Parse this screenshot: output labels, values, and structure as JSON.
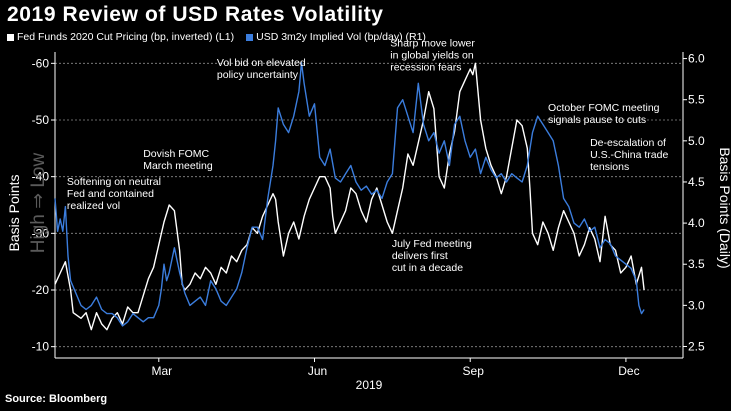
{
  "colors": {
    "background": "#000000",
    "fed_funds_line": "#ffffff",
    "implied_vol_line": "#3b7ddd",
    "grid": "#8a8a8a",
    "watermark": "#5a5a5a"
  },
  "source": "Source: Bloomberg",
  "chart_data": {
    "type": "line",
    "title": "2019 Review of USD Rates Volatility",
    "left_axis": {
      "label": "Basis Points",
      "secondary_label": "High ⇒ Low",
      "ylim": [
        -8,
        -62
      ],
      "inverted": true,
      "ticks": [
        -10,
        -20,
        -30,
        -40,
        -50,
        -60
      ],
      "tick_labels": [
        "-10",
        "-20",
        "-30",
        "-40",
        "-50",
        "-60"
      ]
    },
    "right_axis": {
      "label": "Basis Points (Daily)",
      "ylim": [
        2.36,
        6.08
      ],
      "ticks": [
        2.5,
        3.0,
        3.5,
        4.0,
        4.5,
        5.0,
        5.5,
        6.0
      ],
      "tick_labels": [
        "2.5",
        "3.0",
        "3.5",
        "4.0",
        "4.5",
        "5.0",
        "5.5",
        "6.0"
      ]
    },
    "x_axis": {
      "range_months": [
        0,
        12.1
      ],
      "ticks": [
        {
          "month": 2.0,
          "label": "Mar"
        },
        {
          "month": 5.0,
          "label": "Jun"
        },
        {
          "month": 8.0,
          "label": "Sep"
        },
        {
          "month": 11.0,
          "label": "Dec"
        }
      ],
      "year_label": "2019"
    },
    "grid": "dashed horizontal",
    "legend_position": "top-left",
    "series": [
      {
        "name": "Fed Funds 2020 Cut Pricing (bp, inverted) (L1)",
        "axis": "left",
        "points": [
          [
            0.0,
            -21
          ],
          [
            0.1,
            -23
          ],
          [
            0.2,
            -25
          ],
          [
            0.3,
            -20
          ],
          [
            0.35,
            -16
          ],
          [
            0.5,
            -15
          ],
          [
            0.6,
            -16
          ],
          [
            0.7,
            -13
          ],
          [
            0.8,
            -16
          ],
          [
            0.9,
            -14
          ],
          [
            1.0,
            -13
          ],
          [
            1.1,
            -15
          ],
          [
            1.2,
            -16
          ],
          [
            1.3,
            -14
          ],
          [
            1.4,
            -17
          ],
          [
            1.5,
            -16
          ],
          [
            1.6,
            -16
          ],
          [
            1.7,
            -19
          ],
          [
            1.8,
            -22
          ],
          [
            1.9,
            -24
          ],
          [
            2.0,
            -28
          ],
          [
            2.05,
            -30
          ],
          [
            2.1,
            -32
          ],
          [
            2.2,
            -35
          ],
          [
            2.3,
            -34
          ],
          [
            2.4,
            -27
          ],
          [
            2.45,
            -21
          ],
          [
            2.5,
            -20
          ],
          [
            2.6,
            -21
          ],
          [
            2.7,
            -23
          ],
          [
            2.8,
            -22
          ],
          [
            2.9,
            -24
          ],
          [
            3.0,
            -23
          ],
          [
            3.1,
            -21
          ],
          [
            3.2,
            -24
          ],
          [
            3.3,
            -23
          ],
          [
            3.4,
            -26
          ],
          [
            3.5,
            -25
          ],
          [
            3.6,
            -27
          ],
          [
            3.7,
            -28
          ],
          [
            3.8,
            -31
          ],
          [
            3.9,
            -30
          ],
          [
            4.0,
            -33
          ],
          [
            4.1,
            -35
          ],
          [
            4.2,
            -37
          ],
          [
            4.25,
            -36
          ],
          [
            4.3,
            -32
          ],
          [
            4.4,
            -26
          ],
          [
            4.5,
            -30
          ],
          [
            4.6,
            -32
          ],
          [
            4.7,
            -29
          ],
          [
            4.8,
            -33
          ],
          [
            4.9,
            -36
          ],
          [
            5.0,
            -38
          ],
          [
            5.1,
            -40
          ],
          [
            5.2,
            -40
          ],
          [
            5.3,
            -38
          ],
          [
            5.35,
            -33
          ],
          [
            5.4,
            -30
          ],
          [
            5.5,
            -32
          ],
          [
            5.6,
            -34
          ],
          [
            5.7,
            -38
          ],
          [
            5.8,
            -37
          ],
          [
            5.9,
            -34
          ],
          [
            6.0,
            -32
          ],
          [
            6.1,
            -36
          ],
          [
            6.2,
            -38
          ],
          [
            6.3,
            -35
          ],
          [
            6.4,
            -32
          ],
          [
            6.5,
            -30
          ],
          [
            6.6,
            -34
          ],
          [
            6.7,
            -38
          ],
          [
            6.8,
            -44
          ],
          [
            6.9,
            -42
          ],
          [
            7.0,
            -46
          ],
          [
            7.1,
            -50
          ],
          [
            7.2,
            -55
          ],
          [
            7.3,
            -52
          ],
          [
            7.4,
            -40
          ],
          [
            7.5,
            -38
          ],
          [
            7.6,
            -44
          ],
          [
            7.7,
            -48
          ],
          [
            7.8,
            -55
          ],
          [
            7.9,
            -57
          ],
          [
            8.0,
            -59
          ],
          [
            8.05,
            -58
          ],
          [
            8.1,
            -60
          ],
          [
            8.2,
            -50
          ],
          [
            8.3,
            -45
          ],
          [
            8.4,
            -42
          ],
          [
            8.5,
            -40
          ],
          [
            8.6,
            -37
          ],
          [
            8.7,
            -40
          ],
          [
            8.8,
            -45
          ],
          [
            8.9,
            -50
          ],
          [
            9.0,
            -49
          ],
          [
            9.1,
            -45
          ],
          [
            9.15,
            -38
          ],
          [
            9.2,
            -30
          ],
          [
            9.3,
            -28
          ],
          [
            9.4,
            -32
          ],
          [
            9.5,
            -30
          ],
          [
            9.6,
            -27
          ],
          [
            9.7,
            -31
          ],
          [
            9.8,
            -34
          ],
          [
            9.9,
            -32
          ],
          [
            10.0,
            -30
          ],
          [
            10.1,
            -26
          ],
          [
            10.2,
            -28
          ],
          [
            10.3,
            -31
          ],
          [
            10.4,
            -29
          ],
          [
            10.5,
            -25
          ],
          [
            10.6,
            -33
          ],
          [
            10.7,
            -28
          ],
          [
            10.8,
            -27
          ],
          [
            10.9,
            -23
          ],
          [
            11.0,
            -24
          ],
          [
            11.1,
            -26
          ],
          [
            11.2,
            -21
          ],
          [
            11.3,
            -24
          ],
          [
            11.35,
            -20
          ]
        ]
      },
      {
        "name": "USD 3m2y Implied Vol (bp/day) (R1)",
        "axis": "right",
        "points": [
          [
            0.0,
            4.3
          ],
          [
            0.05,
            3.9
          ],
          [
            0.1,
            4.05
          ],
          [
            0.15,
            3.9
          ],
          [
            0.2,
            4.2
          ],
          [
            0.25,
            3.6
          ],
          [
            0.3,
            3.3
          ],
          [
            0.4,
            3.15
          ],
          [
            0.5,
            3.0
          ],
          [
            0.6,
            2.95
          ],
          [
            0.7,
            3.0
          ],
          [
            0.8,
            3.1
          ],
          [
            0.9,
            2.95
          ],
          [
            1.0,
            2.9
          ],
          [
            1.1,
            2.9
          ],
          [
            1.2,
            2.85
          ],
          [
            1.3,
            2.75
          ],
          [
            1.4,
            2.8
          ],
          [
            1.5,
            2.9
          ],
          [
            1.6,
            2.85
          ],
          [
            1.7,
            2.8
          ],
          [
            1.8,
            2.85
          ],
          [
            1.9,
            2.85
          ],
          [
            2.0,
            3.0
          ],
          [
            2.05,
            3.2
          ],
          [
            2.1,
            3.5
          ],
          [
            2.15,
            3.3
          ],
          [
            2.2,
            3.4
          ],
          [
            2.3,
            3.7
          ],
          [
            2.4,
            3.4
          ],
          [
            2.5,
            3.15
          ],
          [
            2.6,
            3.0
          ],
          [
            2.7,
            3.05
          ],
          [
            2.8,
            3.1
          ],
          [
            2.9,
            3.0
          ],
          [
            3.0,
            3.3
          ],
          [
            3.1,
            3.2
          ],
          [
            3.2,
            3.05
          ],
          [
            3.3,
            3.0
          ],
          [
            3.4,
            3.1
          ],
          [
            3.5,
            3.2
          ],
          [
            3.6,
            3.4
          ],
          [
            3.7,
            3.7
          ],
          [
            3.8,
            3.95
          ],
          [
            3.9,
            3.95
          ],
          [
            4.0,
            3.8
          ],
          [
            4.1,
            4.3
          ],
          [
            4.2,
            4.7
          ],
          [
            4.25,
            5.0
          ],
          [
            4.3,
            5.4
          ],
          [
            4.35,
            5.3
          ],
          [
            4.4,
            5.2
          ],
          [
            4.5,
            5.1
          ],
          [
            4.6,
            5.3
          ],
          [
            4.7,
            5.6
          ],
          [
            4.75,
            5.95
          ],
          [
            4.8,
            5.7
          ],
          [
            4.9,
            5.3
          ],
          [
            5.0,
            5.45
          ],
          [
            5.1,
            4.8
          ],
          [
            5.2,
            4.7
          ],
          [
            5.3,
            4.9
          ],
          [
            5.4,
            4.55
          ],
          [
            5.5,
            4.5
          ],
          [
            5.6,
            4.6
          ],
          [
            5.7,
            4.7
          ],
          [
            5.8,
            4.5
          ],
          [
            5.9,
            4.4
          ],
          [
            6.0,
            4.45
          ],
          [
            6.1,
            4.35
          ],
          [
            6.2,
            4.4
          ],
          [
            6.3,
            4.3
          ],
          [
            6.4,
            4.5
          ],
          [
            6.5,
            4.6
          ],
          [
            6.6,
            5.4
          ],
          [
            6.7,
            5.5
          ],
          [
            6.8,
            5.3
          ],
          [
            6.9,
            5.1
          ],
          [
            7.0,
            5.7
          ],
          [
            7.1,
            5.2
          ],
          [
            7.2,
            5.0
          ],
          [
            7.3,
            5.1
          ],
          [
            7.4,
            4.85
          ],
          [
            7.5,
            5.0
          ],
          [
            7.6,
            4.7
          ],
          [
            7.7,
            5.2
          ],
          [
            7.8,
            5.3
          ],
          [
            7.9,
            5.0
          ],
          [
            8.0,
            4.8
          ],
          [
            8.1,
            4.9
          ],
          [
            8.2,
            4.6
          ],
          [
            8.3,
            4.8
          ],
          [
            8.4,
            4.65
          ],
          [
            8.5,
            4.55
          ],
          [
            8.6,
            4.6
          ],
          [
            8.7,
            4.5
          ],
          [
            8.8,
            4.6
          ],
          [
            8.9,
            4.55
          ],
          [
            9.0,
            4.5
          ],
          [
            9.1,
            4.7
          ],
          [
            9.2,
            5.1
          ],
          [
            9.3,
            5.3
          ],
          [
            9.4,
            5.2
          ],
          [
            9.5,
            5.1
          ],
          [
            9.6,
            5.0
          ],
          [
            9.7,
            4.7
          ],
          [
            9.8,
            4.3
          ],
          [
            9.9,
            4.2
          ],
          [
            10.0,
            4.0
          ],
          [
            10.1,
            3.95
          ],
          [
            10.2,
            4.05
          ],
          [
            10.3,
            3.9
          ],
          [
            10.4,
            3.95
          ],
          [
            10.5,
            3.7
          ],
          [
            10.6,
            3.8
          ],
          [
            10.7,
            3.75
          ],
          [
            10.8,
            3.6
          ],
          [
            10.9,
            3.55
          ],
          [
            11.0,
            3.5
          ],
          [
            11.1,
            3.45
          ],
          [
            11.2,
            3.3
          ],
          [
            11.25,
            3.0
          ],
          [
            11.3,
            2.9
          ],
          [
            11.35,
            2.95
          ]
        ]
      }
    ],
    "annotations": [
      {
        "lines": [
          "Softening on neutral",
          "Fed and contained",
          "realized vol"
        ],
        "month": 0.23,
        "value": -38.5
      },
      {
        "lines": [
          "Dovish FOMC",
          "March meeting"
        ],
        "month": 1.7,
        "value": -43.5
      },
      {
        "lines": [
          "Vol bid on elevated",
          "policy uncertainty"
        ],
        "month": 3.12,
        "value": -59.5
      },
      {
        "lines": [
          "Sharp move lower",
          "in global yields on",
          "recession fears"
        ],
        "month": 6.46,
        "value": -63.0
      },
      {
        "lines": [
          "July Fed meeting",
          "delivers first",
          "cut in a decade"
        ],
        "month": 6.49,
        "value": -27.6
      },
      {
        "lines": [
          "October FOMC meeting",
          "signals pause to cuts"
        ],
        "month": 9.5,
        "value": -51.6
      },
      {
        "lines": [
          "De-escalation of",
          "U.S.-China trade",
          "tensions"
        ],
        "month": 10.31,
        "value": -45.4
      }
    ]
  }
}
